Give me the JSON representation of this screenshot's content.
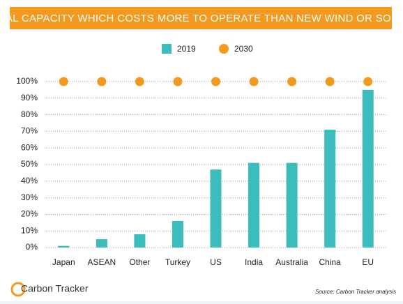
{
  "chart_data": {
    "type": "bar",
    "title": "COAL CAPACITY WHICH COSTS MORE TO OPERATE THAN NEW WIND OR SOLAR",
    "categories": [
      "Japan",
      "ASEAN",
      "Other",
      "Turkey",
      "US",
      "India",
      "Australia",
      "China",
      "EU"
    ],
    "series": [
      {
        "name": "2019",
        "color": "#3bbdbd",
        "type": "bar",
        "values": [
          1,
          5,
          8,
          16,
          47,
          51,
          51,
          71,
          95
        ]
      },
      {
        "name": "2030",
        "color": "#f39a1e",
        "type": "scatter",
        "values": [
          100,
          100,
          100,
          100,
          100,
          100,
          100,
          100,
          100
        ]
      }
    ],
    "ylim": [
      0,
      100
    ],
    "yticks": [
      {
        "value": 0,
        "label": "0%"
      },
      {
        "value": 10,
        "label": "10%"
      },
      {
        "value": 20,
        "label": "20%"
      },
      {
        "value": 30,
        "label": "30%"
      },
      {
        "value": 40,
        "label": "40%"
      },
      {
        "value": 50,
        "label": "50%"
      },
      {
        "value": 60,
        "label": "60%"
      },
      {
        "value": 70,
        "label": "70%"
      },
      {
        "value": 80,
        "label": "80%"
      },
      {
        "value": 90,
        "label": "90%"
      },
      {
        "value": 100,
        "label": "100%"
      }
    ],
    "grid": true,
    "legend": "top",
    "source": "Source: Carbon Tracker analysis",
    "logo": "Carbon Tracker"
  }
}
